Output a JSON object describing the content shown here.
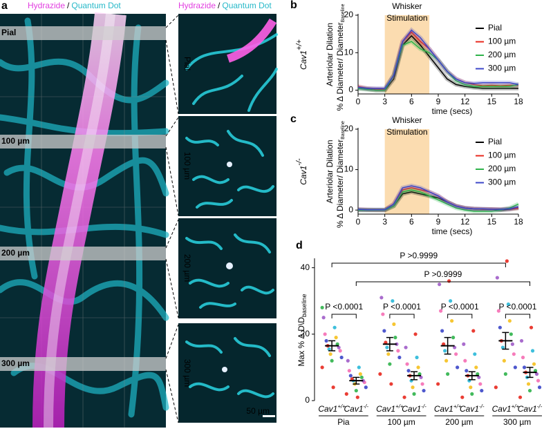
{
  "panel_a": {
    "letter": "a",
    "header": [
      "Hydrazide",
      "/",
      "Quantum Dot"
    ],
    "depths": [
      "Pial",
      "100 µm",
      "200 µm",
      "300 µm"
    ],
    "zoom_header": [
      "Hydrazide",
      "/",
      "Quantum Dot"
    ],
    "zoom_labels": [
      "Pial",
      "100 µm",
      "200 µm",
      "300 µm"
    ],
    "scale_bar": "50 µm"
  },
  "chart_data": [
    {
      "type": "line",
      "letter": "b",
      "genotype": "Cav1",
      "genotype_sup": "+/+",
      "genotype_color": "#000000",
      "annotation": [
        "Whisker",
        "Stimulation"
      ],
      "stimulation": [
        3,
        8
      ],
      "stimulation_color": "#fbdcb0",
      "ylabel": "Arteriolar Dilation",
      "ylabel2": "% Δ Diameter/ Diameter",
      "ylabel2_sub": "Baseline",
      "xlabel": "time (secs)",
      "x": [
        0,
        1,
        2,
        3,
        4,
        5,
        6,
        7,
        8,
        9,
        10,
        11,
        12,
        13,
        14,
        15,
        16,
        17,
        18
      ],
      "xlim": [
        0,
        18
      ],
      "xticks": [
        0,
        3,
        6,
        9,
        12,
        15,
        18
      ],
      "ylim": [
        -1,
        20
      ],
      "yticks": [
        0,
        10,
        20
      ],
      "series": [
        {
          "name": "Pial",
          "color": "#000000",
          "values": [
            0.5,
            0.3,
            0,
            0,
            3,
            12,
            14.5,
            12,
            9,
            6,
            3,
            1.5,
            1,
            0.7,
            0.5,
            0.5,
            0.5,
            0.5,
            0.5
          ]
        },
        {
          "name": "100 µm",
          "color": "#e8281e",
          "values": [
            1,
            0.5,
            0.3,
            0.2,
            4,
            13,
            15.5,
            13,
            11,
            8,
            5,
            3,
            2,
            1.5,
            1.2,
            1.3,
            1.2,
            1.3,
            1.3
          ]
        },
        {
          "name": "200 µm",
          "color": "#2db34a",
          "values": [
            0.5,
            0.2,
            0,
            0,
            4,
            12,
            13,
            11,
            10,
            8,
            5,
            2.5,
            1.5,
            1,
            1,
            1,
            1,
            1,
            1.5
          ]
        },
        {
          "name": "300 µm",
          "color": "#3b46c8",
          "values": [
            0.8,
            0.5,
            0.5,
            0.5,
            4,
            13,
            16,
            14,
            11,
            8,
            5,
            3,
            2,
            1.8,
            2,
            2,
            2,
            2,
            1.5
          ]
        }
      ]
    },
    {
      "type": "line",
      "letter": "c",
      "genotype": "Cav1",
      "genotype_sup": "-/-",
      "genotype_color": "#e8281e",
      "annotation": [
        "Whisker",
        "Stimulation"
      ],
      "stimulation": [
        3,
        8
      ],
      "stimulation_color": "#fbdcb0",
      "ylabel": "Arteriolar Dilation",
      "ylabel2": "% Δ Diameter/ Diameter",
      "ylabel2_sub": "Baseline",
      "xlabel": "time (secs)",
      "x": [
        0,
        1,
        2,
        3,
        4,
        5,
        6,
        7,
        8,
        9,
        10,
        11,
        12,
        13,
        14,
        15,
        16,
        17,
        18
      ],
      "xlim": [
        0,
        18
      ],
      "xticks": [
        0,
        3,
        6,
        9,
        12,
        15,
        18
      ],
      "ylim": [
        -1,
        20
      ],
      "yticks": [
        0,
        10,
        20
      ],
      "series": [
        {
          "name": "Pial",
          "color": "#000000",
          "values": [
            0,
            0,
            0,
            0,
            1,
            4,
            4.5,
            4,
            3.5,
            3,
            2,
            1,
            0.5,
            0.3,
            0.2,
            0.2,
            0,
            0.2,
            0.5
          ]
        },
        {
          "name": "100 µm",
          "color": "#e8281e",
          "values": [
            0.2,
            0.1,
            0,
            0,
            1.5,
            5,
            5.5,
            5,
            4.5,
            3.5,
            2,
            1,
            0.5,
            0.3,
            0.2,
            0.2,
            0.2,
            0.3,
            0.5
          ]
        },
        {
          "name": "200 µm",
          "color": "#2db34a",
          "values": [
            0,
            0,
            0,
            0,
            1,
            4.5,
            5,
            4.5,
            3.5,
            2.5,
            1.5,
            0.5,
            0,
            -0.3,
            -0.3,
            -0.3,
            0,
            0.5,
            1.5
          ]
        },
        {
          "name": "300 µm",
          "color": "#3b46c8",
          "values": [
            0.2,
            0.1,
            0.1,
            0.1,
            1.5,
            5.5,
            6,
            5.5,
            4.5,
            3.5,
            2,
            1,
            0.5,
            0.3,
            0.3,
            0.2,
            0.2,
            0.3,
            0.8
          ]
        }
      ]
    },
    {
      "type": "dot",
      "letter": "d",
      "ylabel": "Max % Δ D\\D",
      "ylabel_sub": "baseline",
      "ylim": [
        0,
        42
      ],
      "yticks": [
        0,
        20,
        40
      ],
      "groups": [
        "Pia",
        "100 µm",
        "200 µm",
        "300 µm"
      ],
      "categories": [
        "Cav1",
        "Cav1",
        "Cav1",
        "Cav1",
        "Cav1",
        "Cav1",
        "Cav1",
        "Cav1"
      ],
      "category_sups": [
        "+/+",
        "-/-",
        "+/+",
        "-/-",
        "+/+",
        "-/-",
        "+/+",
        "-/-"
      ],
      "category_colors": [
        "#000000",
        "#e8281e",
        "#000000",
        "#e8281e",
        "#000000",
        "#e8281e",
        "#000000",
        "#e8281e"
      ],
      "means": [
        16.5,
        6,
        17,
        7.5,
        16.5,
        7.5,
        18,
        8.5
      ],
      "errors": [
        1.5,
        1,
        2,
        1.2,
        2.5,
        1.2,
        2.5,
        1.5
      ],
      "point_colors": [
        "#e8281e",
        "#2db34a",
        "#3b46c8",
        "#f5c01d",
        "#f56eb4",
        "#29b8d8",
        "#a05cc8"
      ],
      "points": [
        [
          10,
          12,
          13,
          14,
          15,
          15.5,
          16,
          16.5,
          17,
          18,
          19,
          20,
          22,
          25,
          4,
          28
        ],
        [
          2,
          3,
          4,
          5,
          5.5,
          6,
          6,
          6.5,
          7,
          7.5,
          8,
          9,
          10,
          12,
          1
        ],
        [
          8,
          11,
          13,
          14,
          15,
          16,
          17,
          17.5,
          19,
          21,
          23,
          26,
          30,
          31,
          5
        ],
        [
          1,
          2,
          3,
          4,
          5,
          6,
          7,
          7.5,
          8,
          9,
          10,
          11,
          13,
          16,
          20
        ],
        [
          5,
          8,
          10,
          12,
          14,
          15,
          16,
          17,
          19,
          21,
          24,
          27,
          30,
          35,
          36
        ],
        [
          1,
          2,
          3,
          4,
          5,
          6,
          7,
          7.5,
          8,
          9,
          10,
          12,
          14,
          17,
          21
        ],
        [
          4,
          8,
          10,
          12,
          14,
          16,
          17,
          18,
          20,
          22,
          24,
          27,
          29,
          37,
          42
        ],
        [
          1,
          3,
          4,
          5,
          6,
          7,
          8,
          8.5,
          9,
          10,
          11,
          13,
          15,
          18,
          22
        ]
      ],
      "comparisons": [
        {
          "categories": [
            0,
            6
          ],
          "label": "P >0.9999"
        },
        {
          "categories": [
            1,
            7
          ],
          "label": "P >0.9999"
        },
        {
          "categories": [
            0,
            1
          ],
          "label": "P <0.0001"
        },
        {
          "categories": [
            2,
            3
          ],
          "label": "P <0.0001"
        },
        {
          "categories": [
            4,
            5
          ],
          "label": "P <0.0001"
        },
        {
          "categories": [
            6,
            7
          ],
          "label": "P <0.0001"
        }
      ]
    }
  ]
}
